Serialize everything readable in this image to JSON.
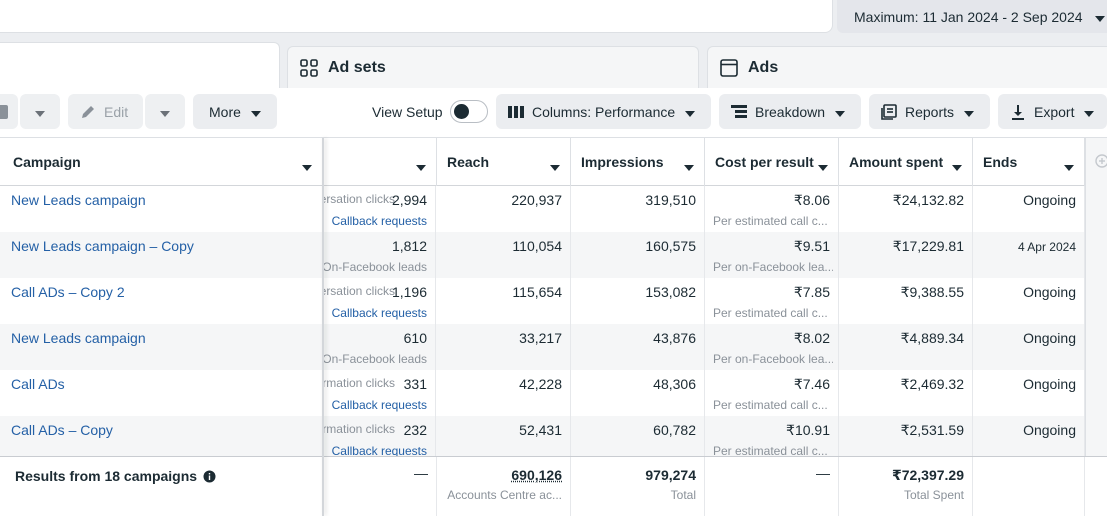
{
  "date_range": {
    "label": "Maximum: 11 Jan 2024 - 2 Sep 2024"
  },
  "tabs": [
    {
      "label": "Ad sets",
      "icon": "grid-icon"
    },
    {
      "label": "Ads",
      "icon": "window-icon"
    }
  ],
  "toolbar": {
    "edit_label": "Edit",
    "more_label": "More",
    "view_setup_label": "View Setup",
    "columns_label": "Columns: Performance",
    "breakdown_label": "Breakdown",
    "reports_label": "Reports",
    "export_label": "Export"
  },
  "table": {
    "headers": {
      "campaign": "Campaign",
      "reach": "Reach",
      "impressions": "Impressions",
      "cost_per_result": "Cost per result",
      "amount_spent": "Amount spent",
      "ends": "Ends"
    },
    "rows": [
      {
        "name": "New Leads campaign",
        "result_label": "Conversation clicks",
        "result_value": "2,994",
        "result_sub": "Callback requests",
        "result_sub_link": true,
        "reach": "220,937",
        "impressions": "319,510",
        "cost": "₹8.06",
        "cost_sub": "Per estimated call c...",
        "spent": "₹24,132.82",
        "ends": "Ongoing"
      },
      {
        "name": "New Leads campaign – Copy",
        "result_label": "",
        "result_value": "1,812",
        "result_sub": "On-Facebook leads",
        "result_sub_link": false,
        "reach": "110,054",
        "impressions": "160,575",
        "cost": "₹9.51",
        "cost_sub": "Per on-Facebook lea...",
        "spent": "₹17,229.81",
        "ends": "4 Apr 2024"
      },
      {
        "name": "Call ADs – Copy 2",
        "result_label": "Conversation clicks",
        "result_value": "1,196",
        "result_sub": "Callback requests",
        "result_sub_link": true,
        "reach": "115,654",
        "impressions": "153,082",
        "cost": "₹7.85",
        "cost_sub": "Per estimated call c...",
        "spent": "₹9,388.55",
        "ends": "Ongoing"
      },
      {
        "name": "New Leads campaign",
        "result_label": "",
        "result_value": "610",
        "result_sub": "On-Facebook leads",
        "result_sub_link": false,
        "reach": "33,217",
        "impressions": "43,876",
        "cost": "₹8.02",
        "cost_sub": "Per on-Facebook lea...",
        "spent": "₹4,889.34",
        "ends": "Ongoing"
      },
      {
        "name": "Call ADs",
        "result_label": "Information clicks",
        "result_value": "331",
        "result_sub": "Callback requests",
        "result_sub_link": true,
        "reach": "42,228",
        "impressions": "48,306",
        "cost": "₹7.46",
        "cost_sub": "Per estimated call c...",
        "spent": "₹2,469.32",
        "ends": "Ongoing"
      },
      {
        "name": "Call ADs – Copy",
        "result_label": "Information clicks",
        "result_value": "232",
        "result_sub": "Callback requests",
        "result_sub_link": true,
        "reach": "52,431",
        "impressions": "60,782",
        "cost": "₹10.91",
        "cost_sub": "Per estimated call c...",
        "spent": "₹2,531.59",
        "ends": "Ongoing"
      }
    ],
    "footer": {
      "label": "Results from 18 campaigns",
      "results_dash": "—",
      "reach": "690,126",
      "reach_sub": "Accounts Centre ac...",
      "impressions": "979,274",
      "impressions_sub": "Total",
      "cost_dash": "—",
      "spent": "₹72,397.29",
      "spent_sub": "Total Spent"
    }
  },
  "colors": {
    "link": "#2460a6",
    "text": "#1c2b33",
    "muted": "#8a9199"
  }
}
